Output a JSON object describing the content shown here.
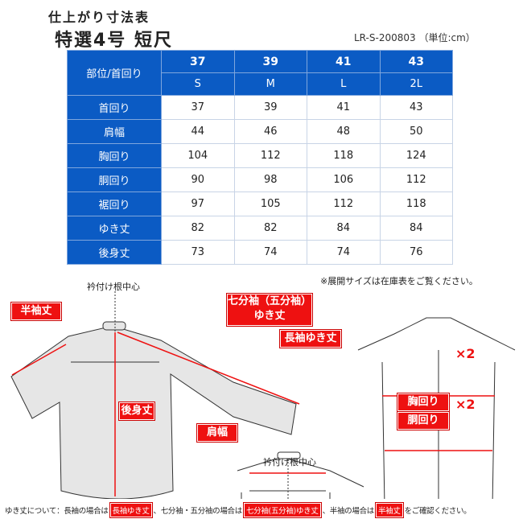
{
  "title": "仕上がり寸法表",
  "product": "特選4号 短尺",
  "code": "LR-S-200803 （単位:cm）",
  "table": {
    "corner": "部位/首回り",
    "sizes": [
      "37",
      "39",
      "41",
      "43"
    ],
    "letters": [
      "S",
      "M",
      "L",
      "2L"
    ],
    "rows": [
      {
        "label": "首回り",
        "values": [
          "37",
          "39",
          "41",
          "43"
        ]
      },
      {
        "label": "肩幅",
        "values": [
          "44",
          "46",
          "48",
          "50"
        ]
      },
      {
        "label": "胸回り",
        "values": [
          "104",
          "112",
          "118",
          "124"
        ]
      },
      {
        "label": "胴回り",
        "values": [
          "90",
          "98",
          "106",
          "112"
        ]
      },
      {
        "label": "裾回り",
        "values": [
          "97",
          "105",
          "112",
          "118"
        ]
      },
      {
        "label": "ゆき丈",
        "values": [
          "82",
          "82",
          "84",
          "84"
        ]
      },
      {
        "label": "後身丈",
        "values": [
          "73",
          "74",
          "74",
          "76"
        ]
      }
    ]
  },
  "note": "※展開サイズは在庫表をご覧ください。",
  "diagram": {
    "collar_center": "衿付け根中心",
    "half_sleeve": "半袖丈",
    "three_quarter": "七分袖（五分袖）",
    "three_quarter2": "ゆき丈",
    "long_sleeve": "長袖ゆき丈",
    "back_length": "後身丈",
    "shoulder": "肩幅",
    "chest": "胸回り",
    "waist": "胴回り",
    "times2": "×2"
  },
  "footer": {
    "p1": "ゆき丈について：長袖の場合は",
    "b1": "長袖ゆき丈",
    "p2": "、七分袖・五分袖の場合は",
    "b2": "七分袖(五分袖)ゆき丈",
    "p3": "、半袖の場合は",
    "b3": "半袖丈",
    "p4": "をご確認ください。"
  },
  "colors": {
    "header": "#0b5bc4",
    "label": "#e11111"
  }
}
